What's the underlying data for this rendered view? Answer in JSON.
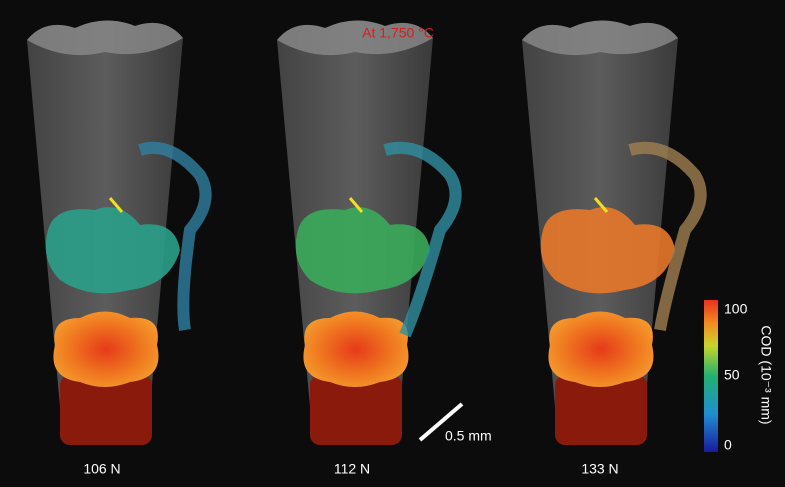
{
  "header": {
    "title": "At 1,750 °C"
  },
  "panels": [
    {
      "label": "106 N"
    },
    {
      "label": "112 N"
    },
    {
      "label": "133 N"
    }
  ],
  "scale_bar": {
    "label": "0.5 mm"
  },
  "colorbar": {
    "label": "COD (10⁻³ mm)",
    "ticks": [
      "100",
      "50",
      "0"
    ]
  }
}
